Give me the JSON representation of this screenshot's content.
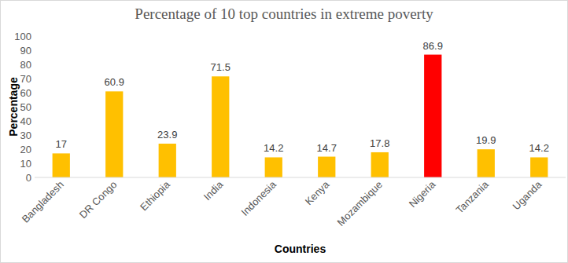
{
  "chart_data": {
    "type": "bar",
    "title": "Percentage of 10 top countries in extreme poverty",
    "x_label": "Countries",
    "y_label": "Percentage",
    "categories": [
      "Bangladesh",
      "DR Congo",
      "Ethiopia",
      "India",
      "Indonesia",
      "Kenya",
      "Mozambique",
      "Nigeria",
      "Tanzania",
      "Uganda"
    ],
    "values": [
      17,
      60.9,
      23.9,
      71.5,
      14.2,
      14.7,
      17.8,
      86.9,
      19.9,
      14.2
    ],
    "colors": [
      "#ffc000",
      "#ffc000",
      "#ffc000",
      "#ffc000",
      "#ffc000",
      "#ffc000",
      "#ffc000",
      "#ff0000",
      "#ffc000",
      "#ffc000"
    ],
    "ylim": [
      0,
      100
    ],
    "yticks": [
      0,
      10,
      20,
      30,
      40,
      50,
      60,
      70,
      80,
      90,
      100
    ],
    "grid": false,
    "data_labels": true
  }
}
